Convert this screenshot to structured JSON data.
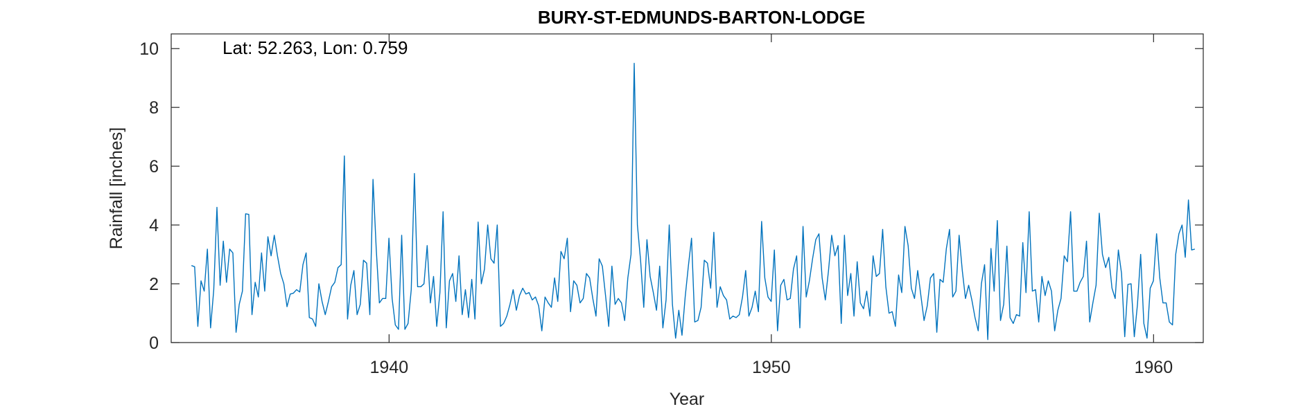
{
  "chart_data": {
    "type": "line",
    "title": "BURY-ST-EDMUNDS-BARTON-LODGE",
    "xlabel": "Year",
    "ylabel": "Rainfall [inches]",
    "annotation": "Lat: 52.263, Lon: 0.759",
    "xlim": [
      1934.3,
      1961.3
    ],
    "ylim": [
      0,
      10.5
    ],
    "xticks": [
      1940,
      1950,
      1960
    ],
    "xtick_labels": [
      "1940",
      "1950",
      "1960"
    ],
    "yticks": [
      0,
      2,
      4,
      6,
      8,
      10
    ],
    "ytick_labels": [
      "0",
      "2",
      "4",
      "6",
      "8",
      "10"
    ],
    "grid": false,
    "series": [
      {
        "color": "#0072BD",
        "x_start": 1934.83,
        "x_step": 0.08333,
        "values": [
          2.62,
          2.58,
          0.55,
          2.1,
          1.75,
          3.18,
          0.5,
          1.8,
          4.6,
          1.95,
          3.45,
          2.05,
          3.18,
          3.05,
          0.35,
          1.3,
          1.75,
          4.38,
          4.36,
          0.95,
          2.05,
          1.55,
          3.05,
          1.75,
          3.6,
          2.95,
          3.65,
          2.95,
          2.35,
          2.0,
          1.22,
          1.65,
          1.68,
          1.8,
          1.72,
          2.65,
          3.05,
          0.85,
          0.8,
          0.55,
          2.0,
          1.4,
          0.95,
          1.4,
          1.9,
          2.05,
          2.55,
          2.65,
          6.35,
          0.8,
          1.95,
          2.45,
          0.95,
          1.3,
          2.8,
          2.7,
          0.95,
          5.55,
          3.2,
          1.35,
          1.5,
          1.5,
          3.55,
          1.5,
          0.6,
          0.45,
          3.65,
          0.45,
          0.65,
          1.8,
          5.75,
          1.9,
          1.9,
          2.0,
          3.3,
          1.35,
          2.25,
          0.55,
          1.7,
          4.45,
          0.5,
          2.1,
          2.35,
          1.4,
          2.95,
          0.95,
          1.8,
          0.85,
          2.15,
          0.8,
          4.1,
          2.0,
          2.5,
          4.0,
          2.85,
          2.7,
          4.0,
          0.55,
          0.65,
          0.9,
          1.3,
          1.8,
          1.1,
          1.6,
          1.85,
          1.65,
          1.7,
          1.45,
          1.55,
          1.25,
          0.4,
          1.55,
          1.35,
          1.2,
          2.2,
          1.4,
          3.1,
          2.85,
          3.55,
          1.05,
          2.1,
          1.95,
          1.35,
          1.5,
          2.35,
          2.2,
          1.5,
          0.9,
          2.85,
          2.6,
          1.6,
          0.55,
          2.6,
          1.3,
          1.5,
          1.35,
          0.75,
          2.2,
          3.0,
          9.5,
          4.0,
          2.8,
          1.2,
          3.5,
          2.25,
          1.7,
          1.1,
          2.6,
          0.5,
          1.45,
          4.0,
          1.3,
          0.15,
          1.1,
          0.25,
          1.55,
          2.6,
          3.55,
          0.7,
          0.75,
          1.2,
          2.8,
          2.7,
          1.85,
          3.75,
          1.2,
          1.9,
          1.6,
          1.45,
          0.8,
          0.9,
          0.85,
          0.95,
          1.55,
          2.45,
          0.9,
          1.2,
          1.75,
          1.05,
          4.12,
          2.2,
          1.55,
          1.4,
          3.15,
          0.4,
          1.95,
          2.15,
          1.45,
          1.5,
          2.5,
          2.95,
          0.5,
          3.95,
          1.55,
          2.1,
          2.85,
          3.5,
          3.7,
          2.2,
          1.45,
          2.45,
          3.65,
          2.95,
          3.3,
          0.65,
          3.65,
          1.6,
          2.35,
          0.9,
          2.75,
          1.35,
          1.15,
          1.75,
          0.9,
          2.95,
          2.25,
          2.35,
          3.85,
          1.9,
          1.0,
          1.05,
          0.55,
          2.3,
          1.7,
          3.95,
          3.3,
          1.85,
          1.5,
          2.45,
          1.6,
          0.75,
          1.25,
          2.2,
          2.35,
          0.35,
          2.15,
          2.05,
          3.2,
          3.85,
          1.55,
          1.75,
          3.65,
          2.45,
          1.5,
          1.95,
          1.45,
          0.85,
          0.4,
          2.0,
          2.65,
          0.1,
          3.2,
          1.75,
          4.15,
          0.75,
          1.3,
          3.28,
          0.85,
          0.65,
          0.95,
          0.9,
          3.4,
          1.7,
          4.45,
          1.75,
          1.8,
          0.7,
          2.25,
          1.6,
          2.1,
          1.75,
          0.4,
          1.1,
          1.5,
          2.95,
          2.75,
          4.45,
          1.75,
          1.75,
          2.05,
          2.25,
          3.45,
          0.7,
          1.35,
          1.95,
          4.4,
          3.0,
          2.55,
          2.9,
          1.85,
          1.5,
          3.15,
          2.35,
          0.2,
          1.98,
          2.0,
          0.2,
          1.3,
          3.0,
          0.65,
          0.15,
          1.85,
          2.1,
          3.7,
          2.2,
          1.35,
          1.35,
          0.7,
          0.6,
          3.0,
          3.7,
          4.0,
          2.9,
          4.85,
          3.15,
          3.18
        ]
      }
    ]
  }
}
